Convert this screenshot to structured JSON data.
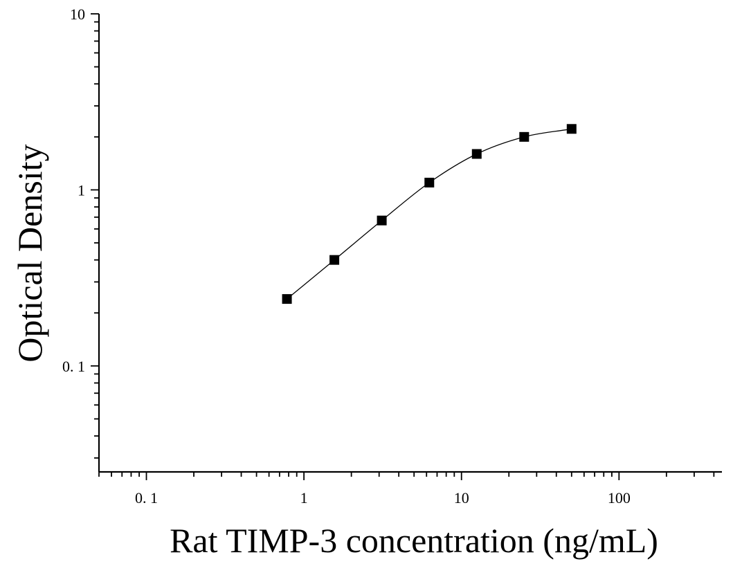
{
  "chart_data": {
    "type": "scatter",
    "title": "",
    "xlabel": "Rat TIMP-3 concentration (ng/mL)",
    "ylabel": "Optical Density",
    "x_scale": "log",
    "y_scale": "log",
    "xlim": [
      0.05,
      450
    ],
    "ylim": [
      0.025,
      10
    ],
    "x_ticks": [
      {
        "value": 0.1,
        "label": "0. 1"
      },
      {
        "value": 1,
        "label": "1"
      },
      {
        "value": 10,
        "label": "10"
      },
      {
        "value": 100,
        "label": "100"
      }
    ],
    "y_ticks": [
      {
        "value": 0.1,
        "label": "0. 1"
      },
      {
        "value": 1,
        "label": "1"
      },
      {
        "value": 10,
        "label": "10"
      }
    ],
    "grid": false,
    "legend": "none",
    "series": [
      {
        "marker": "square",
        "color": "#000000",
        "fit_curve": true,
        "points": [
          {
            "x": 0.78,
            "y": 0.24
          },
          {
            "x": 1.56,
            "y": 0.4
          },
          {
            "x": 3.12,
            "y": 0.67
          },
          {
            "x": 6.25,
            "y": 1.1
          },
          {
            "x": 12.5,
            "y": 1.6
          },
          {
            "x": 25,
            "y": 2.0
          },
          {
            "x": 50,
            "y": 2.22
          }
        ]
      }
    ]
  }
}
